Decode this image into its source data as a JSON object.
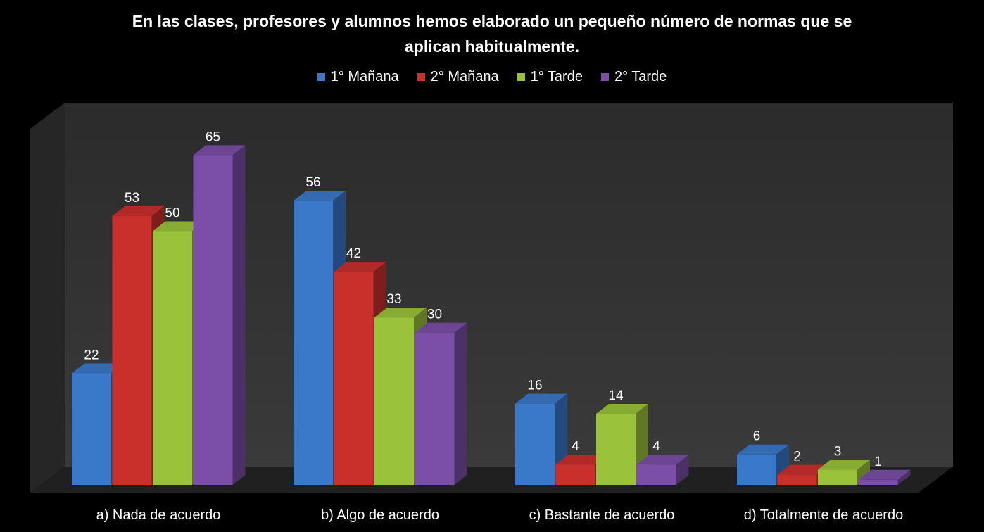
{
  "chart_data": {
    "type": "bar",
    "title": "En las clases, profesores y alumnos hemos elaborado un pequeño número de normas que se aplican habitualmente.",
    "categories": [
      "a) Nada de acuerdo",
      "b) Algo de acuerdo",
      "c) Bastante de acuerdo",
      "d) Totalmente de acuerdo"
    ],
    "series": [
      {
        "name": "1° Mañana",
        "color": "#3A78C9",
        "values": [
          22,
          56,
          16,
          6
        ]
      },
      {
        "name": "2° Mañana",
        "color": "#C9302C",
        "values": [
          53,
          42,
          4,
          2
        ]
      },
      {
        "name": "1° Tarde",
        "color": "#9BC23B",
        "values": [
          50,
          33,
          14,
          3
        ]
      },
      {
        "name": "2° Tarde",
        "color": "#7B4FA8",
        "values": [
          65,
          30,
          4,
          1
        ]
      }
    ],
    "ylim": [
      0,
      70
    ],
    "grid": false,
    "legend_position": "top",
    "style": "3d-clustered-column"
  }
}
